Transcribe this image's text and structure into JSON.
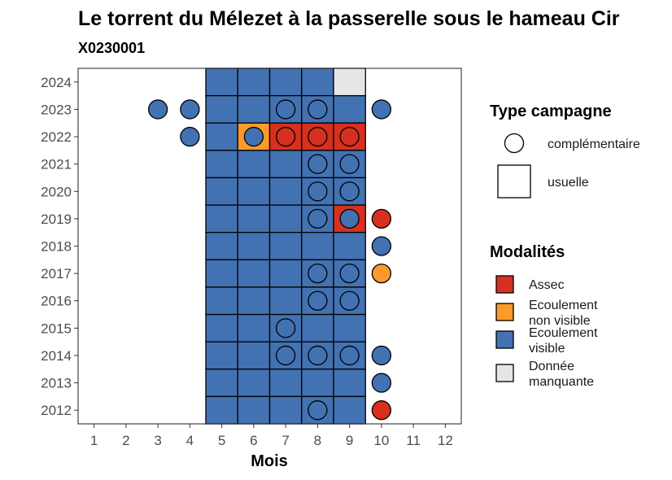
{
  "chart_data": {
    "type": "heatmap",
    "title": "Le torrent du Mélezet à la passerelle sous le hameau Cir",
    "subtitle": "X0230001",
    "xlabel": "Mois",
    "ylabel": "",
    "x_ticks": [
      "1",
      "2",
      "3",
      "4",
      "5",
      "6",
      "7",
      "8",
      "9",
      "10",
      "11",
      "12"
    ],
    "y_ticks": [
      "2012",
      "2013",
      "2014",
      "2015",
      "2016",
      "2017",
      "2018",
      "2019",
      "2020",
      "2021",
      "2022",
      "2023",
      "2024"
    ],
    "xlim": [
      0.5,
      12.5
    ],
    "ylim": [
      2011.5,
      2024.5
    ],
    "grid": false,
    "legend_placement": "right",
    "colors": {
      "Assec": "#d7301f",
      "Ecoulement non visible": "#fd9a2b",
      "Ecoulement visible": "#4372b2",
      "Donnée manquante": "#e6e6e6"
    },
    "tiles_note_months": [
      5,
      6,
      7,
      8,
      9
    ],
    "usuelle": [
      {
        "year": 2024,
        "values": [
          "Ecoulement visible",
          "Ecoulement visible",
          "Ecoulement visible",
          "Ecoulement visible",
          "Donnée manquante"
        ]
      },
      {
        "year": 2023,
        "values": [
          "Ecoulement visible",
          "Ecoulement visible",
          "Ecoulement visible",
          "Ecoulement visible",
          "Ecoulement visible"
        ]
      },
      {
        "year": 2022,
        "values": [
          "Ecoulement visible",
          "Ecoulement non visible",
          "Assec",
          "Assec",
          "Assec"
        ]
      },
      {
        "year": 2021,
        "values": [
          "Ecoulement visible",
          "Ecoulement visible",
          "Ecoulement visible",
          "Ecoulement visible",
          "Ecoulement visible"
        ]
      },
      {
        "year": 2020,
        "values": [
          "Ecoulement visible",
          "Ecoulement visible",
          "Ecoulement visible",
          "Ecoulement visible",
          "Ecoulement visible"
        ]
      },
      {
        "year": 2019,
        "values": [
          "Ecoulement visible",
          "Ecoulement visible",
          "Ecoulement visible",
          "Ecoulement visible",
          "Assec"
        ]
      },
      {
        "year": 2018,
        "values": [
          "Ecoulement visible",
          "Ecoulement visible",
          "Ecoulement visible",
          "Ecoulement visible",
          "Ecoulement visible"
        ]
      },
      {
        "year": 2017,
        "values": [
          "Ecoulement visible",
          "Ecoulement visible",
          "Ecoulement visible",
          "Ecoulement visible",
          "Ecoulement visible"
        ]
      },
      {
        "year": 2016,
        "values": [
          "Ecoulement visible",
          "Ecoulement visible",
          "Ecoulement visible",
          "Ecoulement visible",
          "Ecoulement visible"
        ]
      },
      {
        "year": 2015,
        "values": [
          "Ecoulement visible",
          "Ecoulement visible",
          "Ecoulement visible",
          "Ecoulement visible",
          "Ecoulement visible"
        ]
      },
      {
        "year": 2014,
        "values": [
          "Ecoulement visible",
          "Ecoulement visible",
          "Ecoulement visible",
          "Ecoulement visible",
          "Ecoulement visible"
        ]
      },
      {
        "year": 2013,
        "values": [
          "Ecoulement visible",
          "Ecoulement visible",
          "Ecoulement visible",
          "Ecoulement visible",
          "Ecoulement visible"
        ]
      },
      {
        "year": 2012,
        "values": [
          "Ecoulement visible",
          "Ecoulement visible",
          "Ecoulement visible",
          "Ecoulement visible",
          "Ecoulement visible"
        ]
      }
    ],
    "complementaire": [
      {
        "year": 2023,
        "month": 3,
        "value": "Ecoulement visible"
      },
      {
        "year": 2023,
        "month": 4,
        "value": "Ecoulement visible"
      },
      {
        "year": 2023,
        "month": 7,
        "value": "Ecoulement visible"
      },
      {
        "year": 2023,
        "month": 8,
        "value": "Ecoulement visible"
      },
      {
        "year": 2023,
        "month": 10,
        "value": "Ecoulement visible"
      },
      {
        "year": 2022,
        "month": 4,
        "value": "Ecoulement visible"
      },
      {
        "year": 2022,
        "month": 6,
        "value": "Ecoulement visible"
      },
      {
        "year": 2022,
        "month": 7,
        "value": "Assec"
      },
      {
        "year": 2022,
        "month": 8,
        "value": "Assec"
      },
      {
        "year": 2022,
        "month": 9,
        "value": "Assec"
      },
      {
        "year": 2021,
        "month": 8,
        "value": "Ecoulement visible"
      },
      {
        "year": 2021,
        "month": 9,
        "value": "Ecoulement visible"
      },
      {
        "year": 2020,
        "month": 8,
        "value": "Ecoulement visible"
      },
      {
        "year": 2020,
        "month": 9,
        "value": "Ecoulement visible"
      },
      {
        "year": 2019,
        "month": 8,
        "value": "Ecoulement visible"
      },
      {
        "year": 2019,
        "month": 9,
        "value": "Ecoulement visible"
      },
      {
        "year": 2019,
        "month": 10,
        "value": "Assec"
      },
      {
        "year": 2018,
        "month": 10,
        "value": "Ecoulement visible"
      },
      {
        "year": 2017,
        "month": 8,
        "value": "Ecoulement visible"
      },
      {
        "year": 2017,
        "month": 9,
        "value": "Ecoulement visible"
      },
      {
        "year": 2017,
        "month": 10,
        "value": "Ecoulement non visible"
      },
      {
        "year": 2016,
        "month": 8,
        "value": "Ecoulement visible"
      },
      {
        "year": 2016,
        "month": 9,
        "value": "Ecoulement visible"
      },
      {
        "year": 2015,
        "month": 7,
        "value": "Ecoulement visible"
      },
      {
        "year": 2014,
        "month": 7,
        "value": "Ecoulement visible"
      },
      {
        "year": 2014,
        "month": 8,
        "value": "Ecoulement visible"
      },
      {
        "year": 2014,
        "month": 9,
        "value": "Ecoulement visible"
      },
      {
        "year": 2014,
        "month": 10,
        "value": "Ecoulement visible"
      },
      {
        "year": 2013,
        "month": 10,
        "value": "Ecoulement visible"
      },
      {
        "year": 2012,
        "month": 8,
        "value": "Ecoulement visible"
      },
      {
        "year": 2012,
        "month": 10,
        "value": "Assec"
      }
    ],
    "legend": {
      "type_title": "Type campagne",
      "type_items": [
        {
          "label": "complémentaire",
          "shape": "circle"
        },
        {
          "label": "usuelle",
          "shape": "square"
        }
      ],
      "mod_title": "Modalités",
      "mod_items": [
        {
          "key": "Assec",
          "lines": [
            "Assec"
          ]
        },
        {
          "key": "Ecoulement non visible",
          "lines": [
            "Ecoulement",
            "non visible"
          ]
        },
        {
          "key": "Ecoulement visible",
          "lines": [
            "Ecoulement",
            "visible"
          ]
        },
        {
          "key": "Donnée manquante",
          "lines": [
            "Donnée",
            "manquante"
          ]
        }
      ]
    }
  }
}
